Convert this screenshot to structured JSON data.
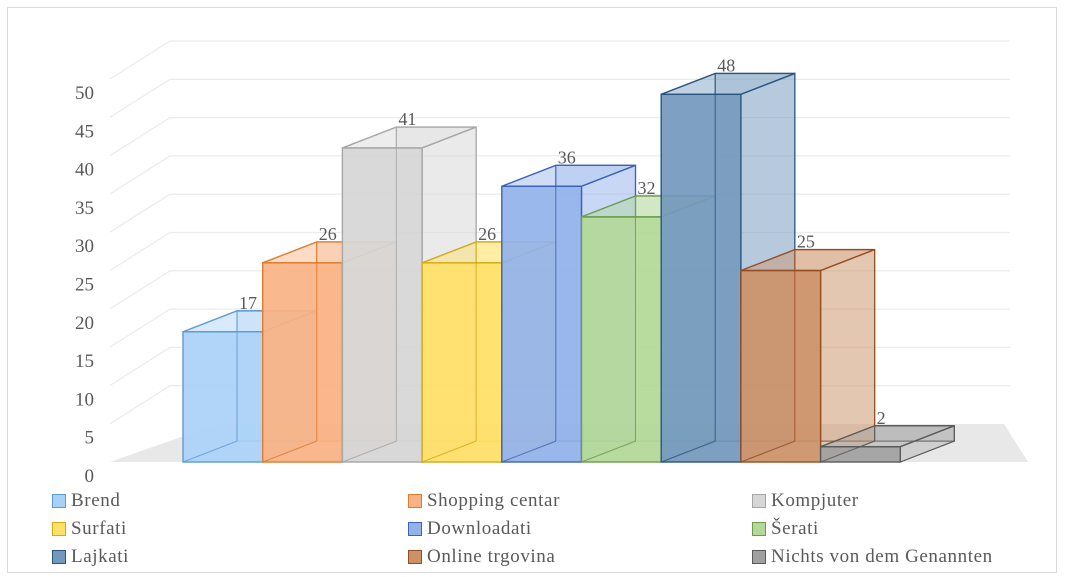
{
  "chart_data": {
    "type": "bar",
    "style": "3d-column",
    "title": "",
    "xlabel": "",
    "ylabel": "",
    "ylim": [
      0,
      50
    ],
    "yticks": [
      0,
      5,
      10,
      15,
      20,
      25,
      30,
      35,
      40,
      45,
      50
    ],
    "grid": true,
    "legend_position": "bottom",
    "series": [
      {
        "name": "Brend",
        "value": 17,
        "color": "#a9d1f7",
        "edge": "#5b9bd5"
      },
      {
        "name": "Shopping centar",
        "value": 26,
        "color": "#f9b283",
        "edge": "#e07b2e"
      },
      {
        "name": "Kompjuter",
        "value": 41,
        "color": "#d6d6d6",
        "edge": "#a6a6a6"
      },
      {
        "name": "Surfati",
        "value": 26,
        "color": "#ffe066",
        "edge": "#d4a914"
      },
      {
        "name": "Downloadati",
        "value": 36,
        "color": "#93b2ea",
        "edge": "#3c63b5"
      },
      {
        "name": "Šerati",
        "value": 32,
        "color": "#b3d898",
        "edge": "#6a9c4c"
      },
      {
        "name": "Lajkati",
        "value": 48,
        "color": "#7398bd",
        "edge": "#2a5580"
      },
      {
        "name": "Online trgovina",
        "value": 25,
        "color": "#cc9168",
        "edge": "#974d22"
      },
      {
        "name": "Nichts von dem Genannten",
        "value": 2,
        "color": "#a0a0a0",
        "edge": "#5a5a5a"
      }
    ]
  }
}
